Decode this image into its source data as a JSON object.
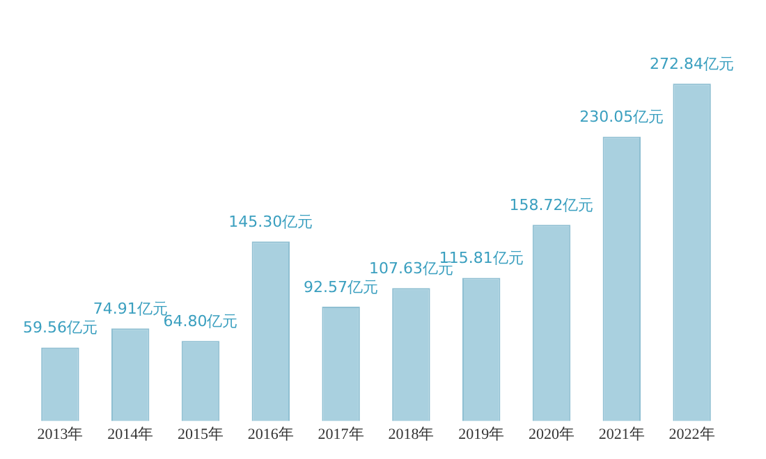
{
  "chart_data": {
    "type": "bar",
    "categories": [
      "2013年",
      "2014年",
      "2015年",
      "2016年",
      "2017年",
      "2018年",
      "2019年",
      "2020年",
      "2021年",
      "2022年"
    ],
    "values": [
      59.56,
      74.91,
      64.8,
      145.3,
      92.57,
      107.63,
      115.81,
      158.72,
      230.05,
      272.84
    ],
    "value_labels": [
      "59.56亿元",
      "74.91亿元",
      "64.80亿元",
      "145.30亿元",
      "92.57亿元",
      "107.63亿元",
      "115.81亿元",
      "158.72亿元",
      "230.05亿元",
      "272.84亿元"
    ],
    "color": "#a9d0df",
    "grid": false,
    "legend": false
  }
}
